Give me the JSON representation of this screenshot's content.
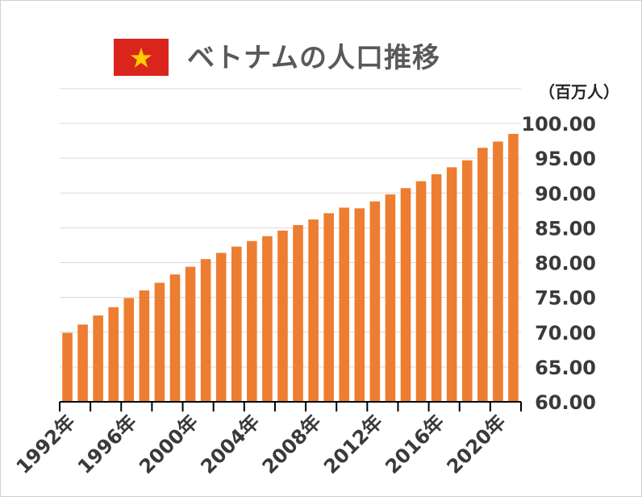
{
  "title": "ベトナムの人口推移",
  "unit_label": "（百万人）",
  "colors": {
    "bar": "#ED7D31",
    "flag_red": "#DA251D",
    "flag_star": "#FFCD00",
    "grid": "#D9D9D9",
    "axis": "#000000"
  },
  "flag_icon": "vietnam-flag",
  "chart_data": {
    "type": "bar",
    "title": "ベトナムの人口推移",
    "ylabel": "（百万人）",
    "xlabel": "",
    "ylim": [
      60,
      100
    ],
    "yticks": [
      "60.00",
      "65.00",
      "70.00",
      "75.00",
      "80.00",
      "85.00",
      "90.00",
      "95.00",
      "100.00"
    ],
    "xtick_labels": [
      "1992年",
      "1996年",
      "2000年",
      "2004年",
      "2008年",
      "2012年",
      "2016年",
      "2020年"
    ],
    "categories": [
      "1992",
      "1993",
      "1994",
      "1995",
      "1996",
      "1997",
      "1998",
      "1999",
      "2000",
      "2001",
      "2002",
      "2003",
      "2004",
      "2005",
      "2006",
      "2007",
      "2008",
      "2009",
      "2010",
      "2011",
      "2012",
      "2013",
      "2014",
      "2015",
      "2016",
      "2017",
      "2018",
      "2019",
      "2020",
      "2021"
    ],
    "values": [
      69.9,
      71.1,
      72.4,
      73.6,
      74.9,
      76.0,
      77.1,
      78.3,
      79.4,
      80.5,
      81.4,
      82.3,
      83.1,
      83.8,
      84.6,
      85.4,
      86.2,
      87.1,
      87.9,
      87.8,
      88.8,
      89.8,
      90.7,
      91.7,
      92.7,
      93.7,
      94.7,
      96.5,
      97.4,
      98.5
    ],
    "grid": true,
    "y_axis_side": "right"
  }
}
